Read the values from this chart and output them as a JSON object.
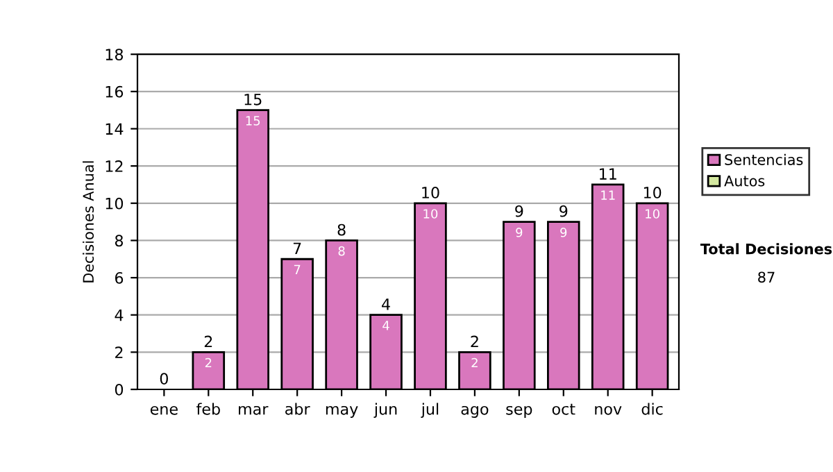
{
  "chart_data": {
    "type": "bar",
    "ylabel": "Decisiones Anual",
    "categories": [
      "ene",
      "feb",
      "mar",
      "abr",
      "may",
      "jun",
      "jul",
      "ago",
      "sep",
      "oct",
      "nov",
      "dic"
    ],
    "series": [
      {
        "name": "Sentencias",
        "color": "#d977bd",
        "values": [
          0,
          2,
          15,
          7,
          8,
          4,
          10,
          2,
          9,
          9,
          11,
          10
        ],
        "value_labels": [
          null,
          "2",
          "15",
          "7",
          "8",
          "4",
          "10",
          "2",
          "9",
          "9",
          "11",
          "10"
        ]
      },
      {
        "name": "Autos",
        "color": "#d4e8a0",
        "values": [
          null,
          null,
          null,
          null,
          null,
          null,
          null,
          null,
          null,
          null,
          null,
          null
        ]
      }
    ],
    "stacked": true,
    "totals": [
      "0",
      "2",
      "15",
      "7",
      "8",
      "4",
      "10",
      "2",
      "9",
      "9",
      "11",
      "10"
    ],
    "ylim": [
      0,
      18
    ],
    "yticks": [
      0,
      2,
      4,
      6,
      8,
      10,
      12,
      14,
      16,
      18
    ],
    "grid": "y",
    "legend": "right",
    "annotations": [
      "Total Decisiones",
      "87"
    ]
  }
}
